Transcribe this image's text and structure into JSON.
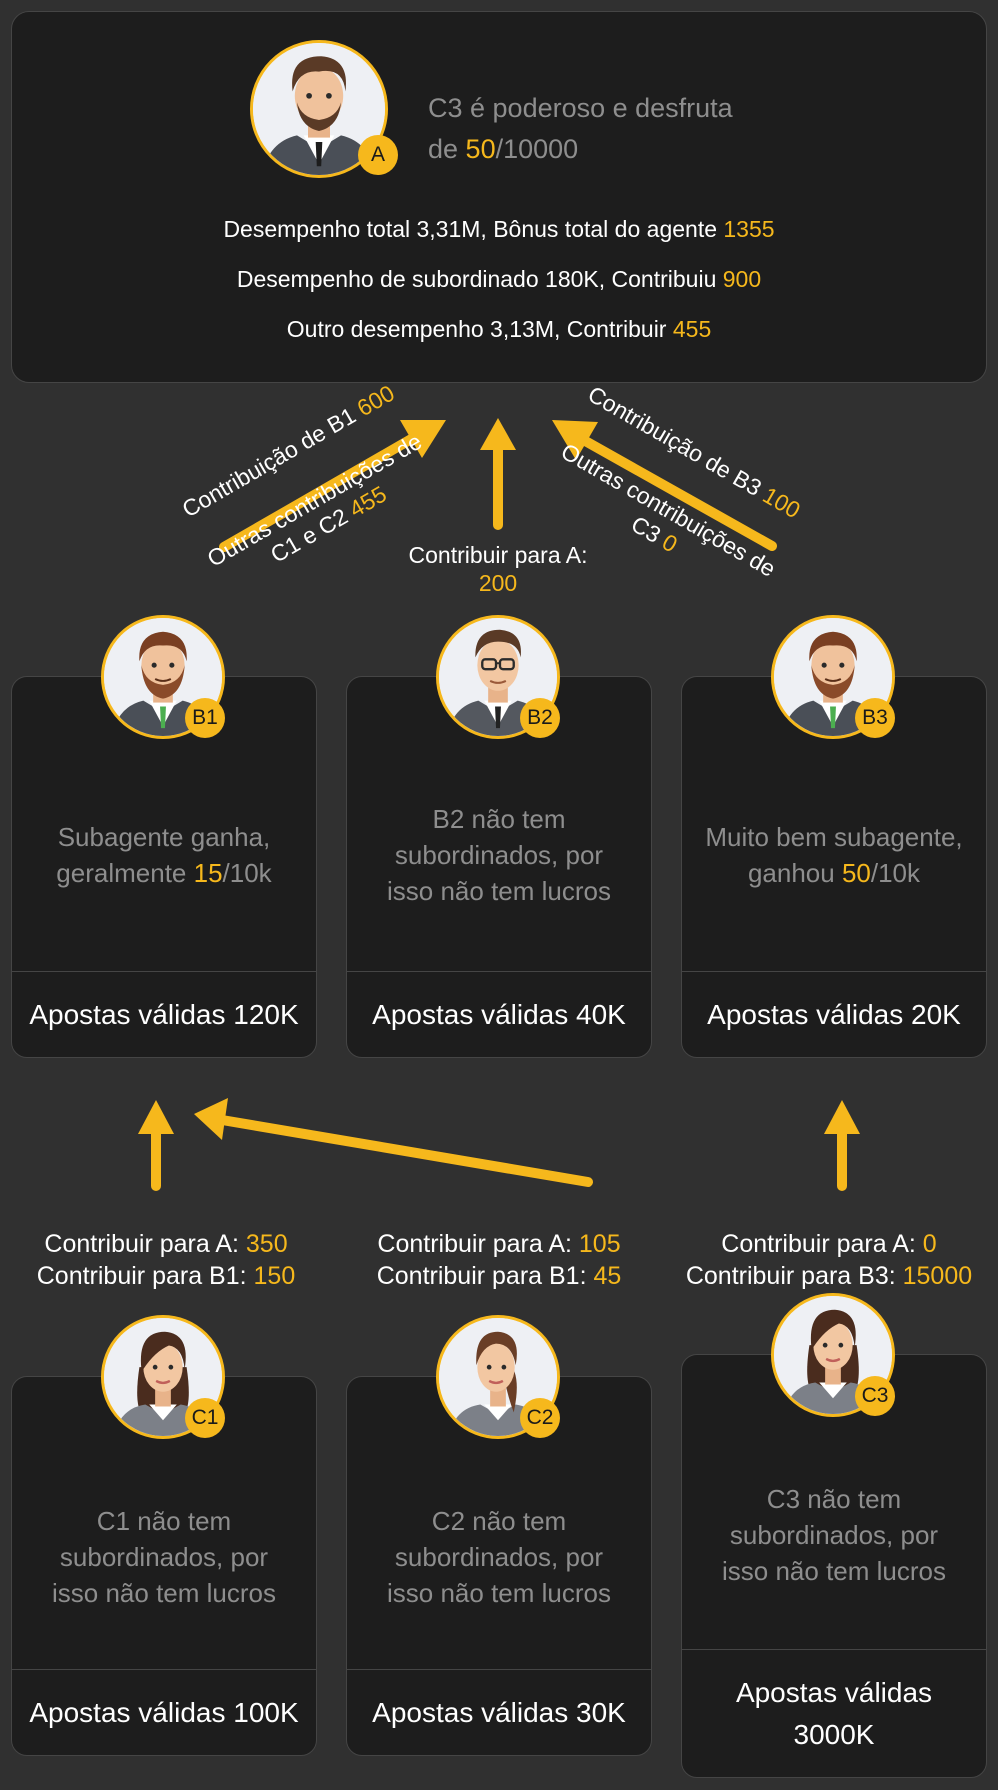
{
  "top": {
    "badge": "A",
    "desc_1": "C3 é poderoso e desfruta",
    "desc_2_pre": "de ",
    "desc_2_val": "50",
    "desc_2_post": "/10000",
    "line1_text": "Desempenho total 3,31M, Bônus total do agente ",
    "line1_val": "1355",
    "line2_text": "Desempenho de subordinado 180K, Contribuiu ",
    "line2_val": "900",
    "line3_text": "Outro desempenho 3,13M, Contribuir ",
    "line3_val": "455"
  },
  "arrows": {
    "b1_label": "Contribuição de B1 ",
    "b1_val": "600",
    "c1c2_line1": "Outras contribuições de",
    "c1c2_line2": "C1 e C2 ",
    "c1c2_val": "455",
    "b2_label": "Contribuir para A:",
    "b2_val": "200",
    "b3_label": "Contribuição de B3 ",
    "b3_val": "100",
    "c3_line1": "Outras contribuições de",
    "c3_line2": "C3 ",
    "c3_val": "0"
  },
  "b_cards": [
    {
      "badge": "B1",
      "desc_1": "Subagente ganha,",
      "desc_2_pre": "geralmente ",
      "desc_2_val": "15",
      "desc_2_post": "/10k",
      "footer": "Apostas válidas 120K"
    },
    {
      "badge": "B2",
      "desc_1": "B2 não tem",
      "desc_2": "subordinados, por",
      "desc_3": "isso não tem lucros",
      "footer": "Apostas válidas 40K"
    },
    {
      "badge": "B3",
      "desc_1": "Muito bem subagente,",
      "desc_2_pre": "ganhou ",
      "desc_2_val": "50",
      "desc_2_post": "/10k",
      "footer": "Apostas válidas 20K"
    }
  ],
  "c_contrib": [
    {
      "l1": "Contribuir para A: ",
      "v1": "350",
      "l2": "Contribuir para B1: ",
      "v2": "150"
    },
    {
      "l1": "Contribuir para A: ",
      "v1": "105",
      "l2": "Contribuir para B1: ",
      "v2": "45"
    },
    {
      "l1": "Contribuir para A: ",
      "v1": "0",
      "l2": "Contribuir para B3: ",
      "v2": "15000"
    }
  ],
  "c_cards": [
    {
      "badge": "C1",
      "desc_1": "C1 não tem",
      "desc_2": "subordinados, por",
      "desc_3": "isso não tem lucros",
      "footer": "Apostas válidas 100K"
    },
    {
      "badge": "C2",
      "desc_1": "C2 não tem",
      "desc_2": "subordinados, por",
      "desc_3": "isso não tem lucros",
      "footer": "Apostas válidas 30K"
    },
    {
      "badge": "C3",
      "desc_1": "C3 não tem",
      "desc_2": "subordinados, por",
      "desc_3": "isso não tem lucros",
      "footer_1": "Apostas válidas",
      "footer_2": "3000K"
    }
  ],
  "colors": {
    "accent": "#f6b81c",
    "card_bg": "#1d1d1d",
    "page_bg": "#303030",
    "muted": "#8e8e8e"
  },
  "icons": {
    "male_avatar": "man-avatar-icon",
    "female_avatar": "woman-avatar-icon",
    "arrow": "arrow-up-icon"
  }
}
